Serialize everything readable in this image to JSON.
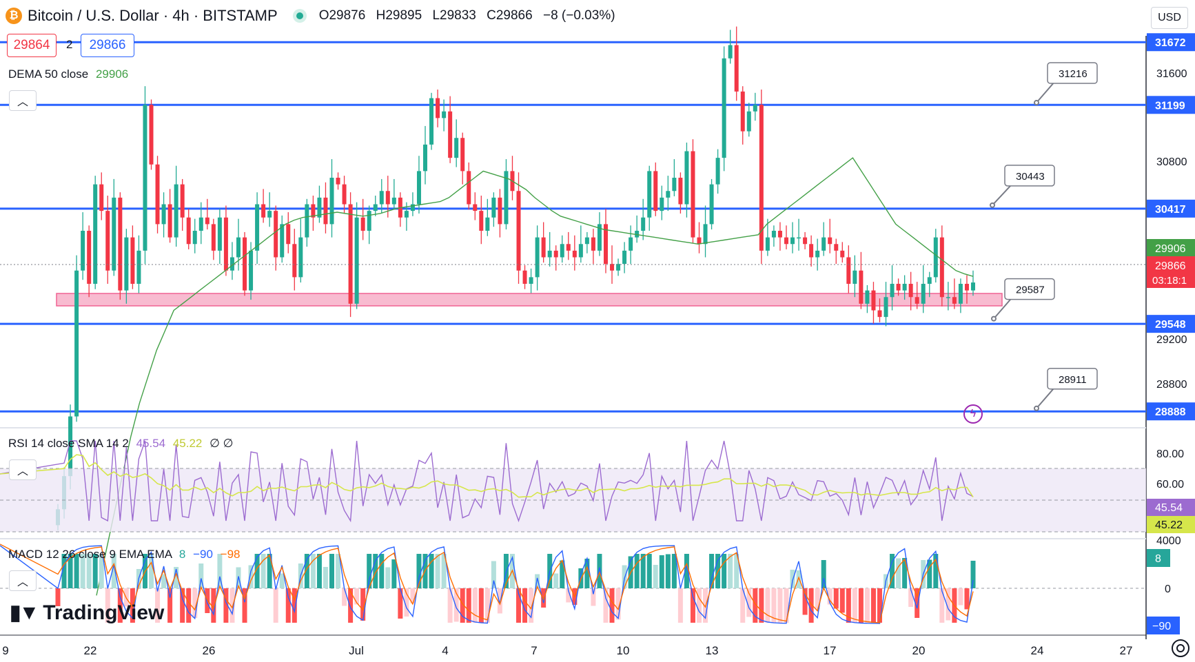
{
  "header": {
    "symbol_icon": "bitcoin-icon",
    "title": "Bitcoin / U.S. Dollar · 4h · BITSTAMP",
    "status_icon": "live-dot-icon",
    "ohlc": {
      "open": "O29876",
      "high": "H29895",
      "low": "L29833",
      "close": "C29866",
      "change": "−8 (−0.03%)"
    },
    "sell_price": "29864",
    "spread": "2",
    "buy_price": "29866",
    "currency": "USD"
  },
  "indicators": {
    "dema": {
      "label": "DEMA 50 close",
      "value": "29906"
    },
    "rsi": {
      "label": "RSI 14 close SMA 14 2",
      "value1": "45.54",
      "value2": "45.22",
      "extra": "∅ ∅"
    },
    "macd": {
      "label": "MACD 12 26 close 9 EMA EMA",
      "hist": "8",
      "macd": "−90",
      "signal": "−98"
    }
  },
  "price_axis": {
    "ticks": [
      "31600",
      "30800",
      "29200",
      "28800"
    ],
    "levels": [
      {
        "value": 31672,
        "label": "31672"
      },
      {
        "value": 31199,
        "label": "31199"
      },
      {
        "value": 30417,
        "label": "30417"
      },
      {
        "value": 29548,
        "label": "29548"
      },
      {
        "value": 28888,
        "label": "28888"
      }
    ],
    "dema_badge": "29906",
    "last_price_badge": "29866",
    "countdown": "03:18:1"
  },
  "callouts": [
    {
      "label": "31216",
      "value": 31216
    },
    {
      "label": "30443",
      "value": 30443
    },
    {
      "label": "29587",
      "value": 29587
    },
    {
      "label": "28911",
      "value": 28911
    }
  ],
  "rsi_axis": {
    "ticks": [
      "80.00",
      "60.00"
    ],
    "badge1": "45.54",
    "badge2": "45.22"
  },
  "macd_axis": {
    "ticks": [
      "4000",
      "0"
    ],
    "badge_hist": "8",
    "badge_macd": "−90"
  },
  "time_axis": [
    "9",
    "22",
    "26",
    "Jul",
    "4",
    "7",
    "10",
    "13",
    "17",
    "20",
    "24",
    "27"
  ],
  "branding": {
    "logo_text": "TradingView",
    "logo_icon": "tradingview-logo-icon"
  },
  "icons": {
    "settings": "gear-icon",
    "collapse": "chevron-up-icon",
    "alert": "lightning-icon"
  },
  "colors": {
    "up": "#22ab94",
    "down": "#f23645",
    "level": "#2962ff",
    "dema": "#43a047",
    "rsi": "#9c6bd0",
    "rsi_sma": "#d6e64b",
    "macd": "#2962ff",
    "signal": "#ff6d00",
    "hist_up_strong": "#26a69a",
    "hist_up_weak": "#b2dfdb",
    "hist_down_strong": "#ff5252",
    "hist_down_weak": "#ffcdd2"
  },
  "chart_data": {
    "type": "candlestick",
    "price_range": [
      28780,
      31720
    ],
    "closes": [
      28150,
      28400,
      28850,
      29950,
      30250,
      29850,
      30600,
      30400,
      29950,
      30500,
      29800,
      30200,
      29850,
      30100,
      31200,
      30750,
      30300,
      30450,
      30200,
      30600,
      30350,
      30150,
      30250,
      30350,
      30300,
      30100,
      30350,
      29950,
      30050,
      30200,
      29800,
      30100,
      30450,
      30350,
      30400,
      30050,
      30300,
      30150,
      29900,
      30200,
      30450,
      30350,
      30500,
      30300,
      30650,
      30600,
      30450,
      29700,
      30350,
      30250,
      30400,
      30450,
      30550,
      30450,
      30500,
      30350,
      30400,
      30450,
      30700,
      30900,
      31250,
      31100,
      31150,
      30800,
      30950,
      30700,
      30450,
      30400,
      30250,
      30350,
      30500,
      30300,
      30700,
      30550,
      29950,
      29850,
      29900,
      30200,
      30050,
      30100,
      30050,
      30150,
      30100,
      30050,
      30150,
      30200,
      30100,
      30300,
      30000,
      29950,
      30000,
      30100,
      30200,
      30250,
      30350,
      30700,
      30400,
      30500,
      30550,
      30650,
      30450,
      30850,
      30200,
      30150,
      30300,
      30600,
      30800,
      31550,
      31650,
      31300,
      31000,
      31150,
      31200,
      30100,
      30200,
      30250,
      30200,
      30150,
      30200,
      30200,
      30150,
      30050,
      30100,
      30200,
      30150,
      30100,
      30050,
      29850,
      29950,
      29700,
      29800,
      29650,
      29600,
      29750,
      29850,
      29800,
      29850,
      29750,
      29700,
      29850,
      29900,
      30200,
      29750,
      29750,
      29700,
      29850,
      29800,
      29860
    ],
    "dema": [
      27500,
      27800,
      28100,
      28400,
      28700,
      28950,
      29150,
      29350,
      29500,
      29650,
      29700,
      29750,
      29800,
      29850,
      29900,
      29950,
      30000,
      30050,
      30100,
      30150,
      30200,
      30250,
      30300,
      30330,
      30350,
      30360,
      30370,
      30380,
      30390,
      30380,
      30370,
      30360,
      30370,
      30380,
      30400,
      30420,
      30430,
      30440,
      30450,
      30460,
      30470,
      30500,
      30550,
      30600,
      30650,
      30700,
      30680,
      30660,
      30640,
      30600,
      30560,
      30500,
      30450,
      30400,
      30360,
      30340,
      30320,
      30300,
      30280,
      30260,
      30250,
      30240,
      30230,
      30220,
      30210,
      30200,
      30190,
      30180,
      30170,
      30160,
      30150,
      30160,
      30170,
      30180,
      30190,
      30200,
      30210,
      30220,
      30300,
      30350,
      30400,
      30450,
      30500,
      30550,
      30600,
      30650,
      30700,
      30750,
      30800,
      30700,
      30600,
      30500,
      30400,
      30300,
      30250,
      30200,
      30150,
      30100,
      30050,
      30000,
      29950,
      29925,
      29906
    ],
    "levels": [
      31672,
      31199,
      30417,
      29548,
      28888
    ],
    "support_zone": [
      29510,
      29610
    ],
    "rsi_range": [
      20,
      90
    ],
    "macd_hist_latest": 8,
    "macd_latest": -90,
    "signal_latest": -98
  }
}
